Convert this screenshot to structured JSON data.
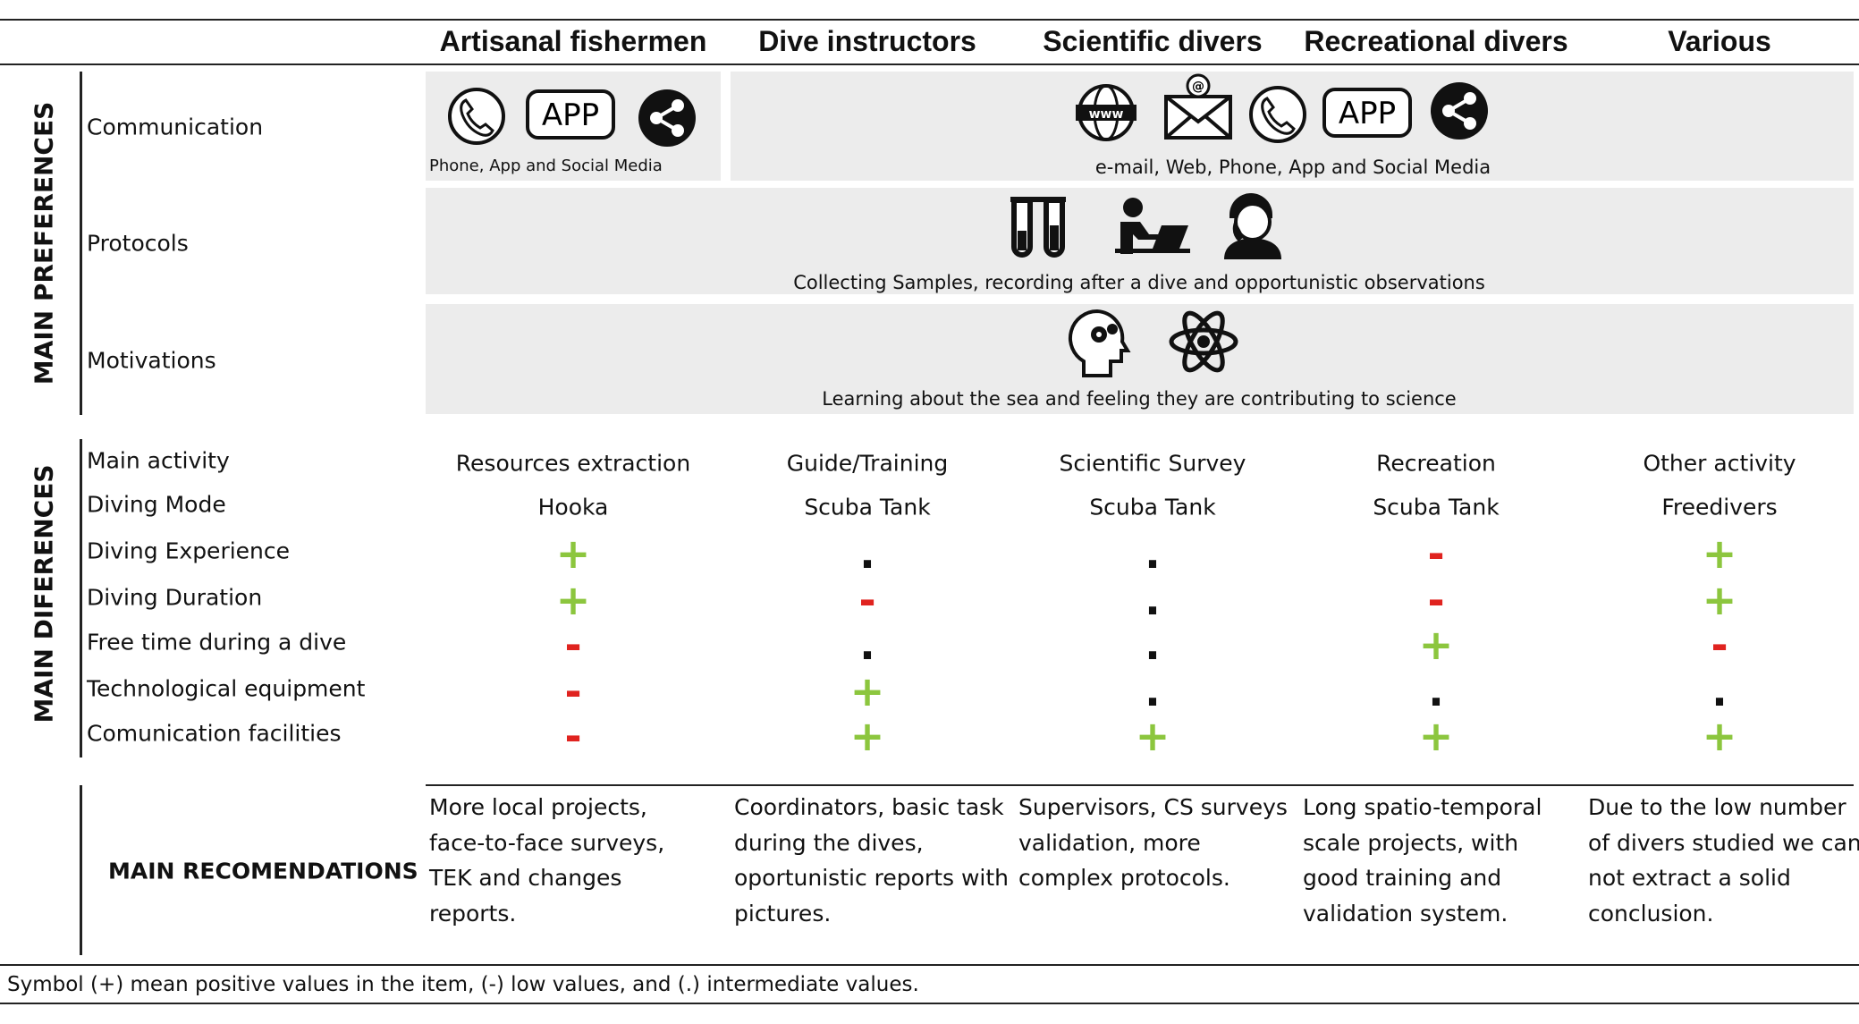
{
  "columns": [
    "Artisanal fishermen",
    "Dive instructors",
    "Scientific divers",
    "Recreational divers",
    "Various"
  ],
  "preferences": {
    "title": "MAIN PREFERENCES",
    "communication": {
      "label": "Communication",
      "artisanal": {
        "app_icon": "APP",
        "caption": "Phone, App and Social Media"
      },
      "others": {
        "app_icon": "APP",
        "caption": "e-mail, Web, Phone, App and Social Media"
      }
    },
    "protocols": {
      "label": "Protocols",
      "caption": "Collecting Samples, recording after a dive and opportunistic observations"
    },
    "motivations": {
      "label": "Motivations",
      "caption": "Learning about the sea and feeling they are contributing to science"
    }
  },
  "differences": {
    "title": "MAIN DIFERENCES",
    "rows": [
      {
        "label": "Main activity",
        "cells": [
          "Resources extraction",
          "Guide/Training",
          "Scientific Survey",
          "Recreation",
          "Other activity"
        ]
      },
      {
        "label": "Diving Mode",
        "cells": [
          "Hooka",
          "Scuba Tank",
          "Scuba Tank",
          "Scuba Tank",
          "Freedivers"
        ]
      },
      {
        "label": "Diving Experience",
        "cells": [
          "+",
          ".",
          ".",
          "-",
          "+"
        ]
      },
      {
        "label": "Diving Duration",
        "cells": [
          "+",
          "-",
          ".",
          "-",
          "+"
        ]
      },
      {
        "label": "Free time during a dive",
        "cells": [
          "-",
          ".",
          ".",
          "+",
          "-"
        ]
      },
      {
        "label": "Technological equipment",
        "cells": [
          "-",
          "+",
          ".",
          ".",
          "."
        ]
      },
      {
        "label": "Comunication facilities",
        "cells": [
          "-",
          "+",
          "+",
          "+",
          "+"
        ]
      }
    ]
  },
  "recommendations": {
    "label": "MAIN RECOMENDATIONS",
    "cells": [
      "More local projects, face-to-face surveys, TEK and changes reports.",
      "Coordinators, basic task during the dives, oportunistic reports with pictures.",
      "Supervisors, CS surveys validation, more complex protocols.",
      "Long spatio-temporal scale projects, with good training and validation system.",
      "Due to the low number of divers studied we can not extract a solid conclusion."
    ]
  },
  "footnote": "Symbol (+) mean positive values in the item, (-) low values, and (.) intermediate values."
}
